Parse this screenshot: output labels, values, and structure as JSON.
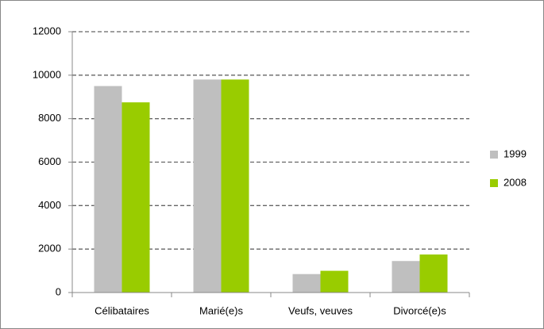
{
  "chart_data": {
    "type": "bar",
    "categories": [
      "Célibataires",
      "Marié(e)s",
      "Veufs, veuves",
      "Divorcé(e)s"
    ],
    "series": [
      {
        "name": "1999",
        "color": "#bfbfbf",
        "values": [
          9500,
          9800,
          850,
          1450
        ]
      },
      {
        "name": "2008",
        "color": "#99cc00",
        "values": [
          8750,
          9800,
          1000,
          1750
        ]
      }
    ],
    "ylim": [
      0,
      12000
    ],
    "yticks": [
      0,
      2000,
      4000,
      6000,
      8000,
      10000,
      12000
    ],
    "grid": true,
    "legend": "right"
  }
}
